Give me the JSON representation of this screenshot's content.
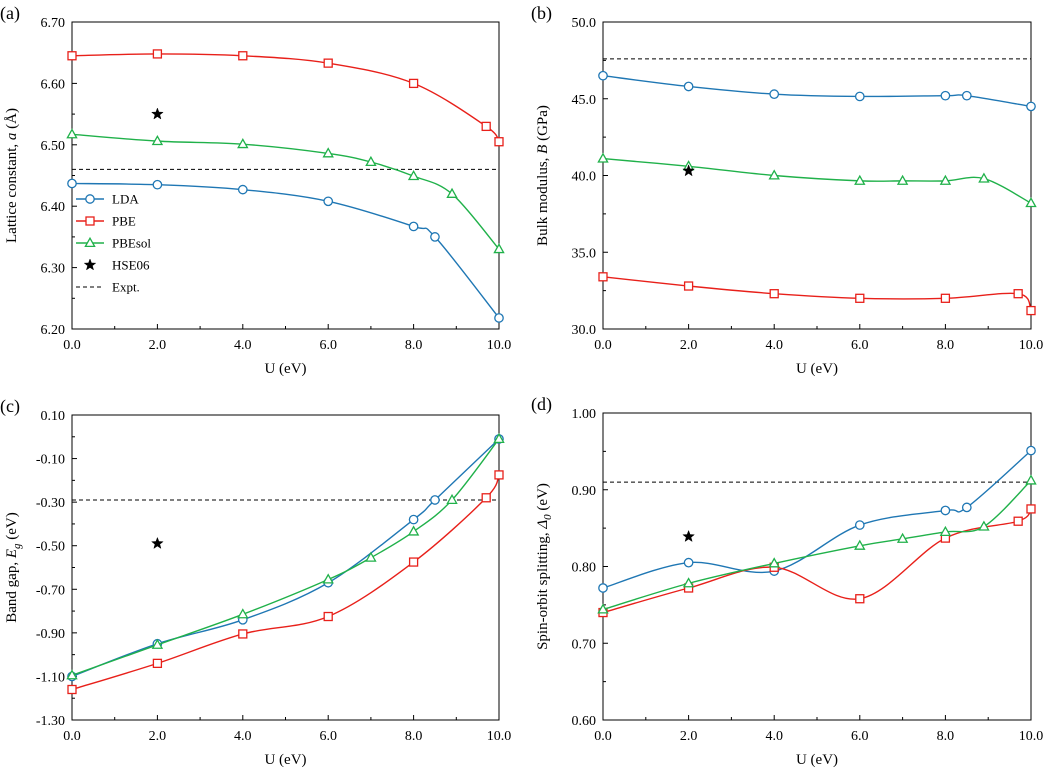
{
  "colors": {
    "LDA": "#1f77b4",
    "PBE": "#e8201a",
    "PBEsol": "#20b14a",
    "HSE06": "#000000",
    "Expt": "#000000"
  },
  "legend": [
    {
      "name": "LDA",
      "marker": "circle"
    },
    {
      "name": "PBE",
      "marker": "square"
    },
    {
      "name": "PBEsol",
      "marker": "triangle"
    },
    {
      "name": "HSE06",
      "marker": "star"
    },
    {
      "name": "Expt.",
      "marker": "dashed-line"
    }
  ],
  "chart_data": [
    {
      "type": "line",
      "panel_label": "(a)",
      "xlabel": "U (eV)",
      "ylabel": "Lattice constant, a (Å)",
      "xlim": [
        0,
        10
      ],
      "ylim": [
        6.2,
        6.7
      ],
      "xticks": [
        "0.0",
        "2.0",
        "4.0",
        "6.0",
        "8.0",
        "10.0"
      ],
      "yticks": [
        "6.20",
        "6.30",
        "6.40",
        "6.50",
        "6.60",
        "6.70"
      ],
      "legend_position": "bottom-left",
      "series": [
        {
          "name": "LDA",
          "marker": "circle",
          "x": [
            0,
            2,
            4,
            6,
            8,
            8.5,
            10
          ],
          "y": [
            6.437,
            6.435,
            6.427,
            6.408,
            6.367,
            6.35,
            6.218
          ]
        },
        {
          "name": "PBE",
          "marker": "square",
          "x": [
            0,
            2,
            4,
            6,
            8,
            9.7,
            10
          ],
          "y": [
            6.645,
            6.648,
            6.645,
            6.633,
            6.6,
            6.53,
            6.505
          ]
        },
        {
          "name": "PBEsol",
          "marker": "triangle",
          "x": [
            0,
            2,
            4,
            6,
            7,
            8,
            8.9,
            10
          ],
          "y": [
            6.517,
            6.506,
            6.501,
            6.486,
            6.472,
            6.449,
            6.42,
            6.33
          ]
        }
      ],
      "hse06": {
        "x": 2,
        "y": 6.55
      },
      "expt": 6.46
    },
    {
      "type": "line",
      "panel_label": "(b)",
      "xlabel": "U (eV)",
      "ylabel": "Bulk modulus, B (GPa)",
      "xlim": [
        0,
        10
      ],
      "ylim": [
        30,
        50
      ],
      "xticks": [
        "0.0",
        "2.0",
        "4.0",
        "6.0",
        "8.0",
        "10.0"
      ],
      "yticks": [
        "30.0",
        "35.0",
        "40.0",
        "45.0",
        "50.0"
      ],
      "series": [
        {
          "name": "LDA",
          "marker": "circle",
          "x": [
            0,
            2,
            4,
            6,
            8,
            8.5,
            10
          ],
          "y": [
            46.5,
            45.8,
            45.3,
            45.15,
            45.2,
            45.2,
            44.5
          ]
        },
        {
          "name": "PBE",
          "marker": "square",
          "x": [
            0,
            2,
            4,
            6,
            8,
            9.7,
            10
          ],
          "y": [
            33.4,
            32.8,
            32.3,
            32.0,
            32.0,
            32.3,
            31.2
          ]
        },
        {
          "name": "PBEsol",
          "marker": "triangle",
          "x": [
            0,
            2,
            4,
            6,
            7,
            8,
            8.9,
            10
          ],
          "y": [
            41.1,
            40.6,
            40.0,
            39.65,
            39.65,
            39.65,
            39.8,
            38.2
          ]
        }
      ],
      "hse06": {
        "x": 2,
        "y": 40.3
      },
      "expt": 47.6
    },
    {
      "type": "line",
      "panel_label": "(c)",
      "xlabel": "U (eV)",
      "ylabel": "Band gap, Eg (eV)",
      "xlim": [
        0,
        10
      ],
      "ylim": [
        -1.3,
        0.1
      ],
      "xticks": [
        "0.0",
        "2.0",
        "4.0",
        "6.0",
        "8.0",
        "10.0"
      ],
      "yticks": [
        "-1.30",
        "-1.10",
        "-0.90",
        "-0.70",
        "-0.50",
        "-0.30",
        "-0.10",
        "0.10"
      ],
      "series": [
        {
          "name": "LDA",
          "marker": "circle",
          "x": [
            0,
            2,
            4,
            6,
            8,
            8.5,
            10
          ],
          "y": [
            -1.1,
            -0.95,
            -0.84,
            -0.67,
            -0.38,
            -0.29,
            -0.01
          ]
        },
        {
          "name": "PBE",
          "marker": "square",
          "x": [
            0,
            2,
            4,
            6,
            8,
            9.7,
            10
          ],
          "y": [
            -1.16,
            -1.04,
            -0.905,
            -0.825,
            -0.575,
            -0.28,
            -0.175
          ]
        },
        {
          "name": "PBEsol",
          "marker": "triangle",
          "x": [
            0,
            2,
            4,
            6,
            7,
            8,
            8.9,
            10
          ],
          "y": [
            -1.095,
            -0.955,
            -0.815,
            -0.655,
            -0.555,
            -0.435,
            -0.29,
            -0.01
          ]
        }
      ],
      "hse06": {
        "x": 2,
        "y": -0.49
      },
      "expt": -0.29
    },
    {
      "type": "line",
      "panel_label": "(d)",
      "xlabel": "U (eV)",
      "ylabel": "Spin-orbit splitting, Δ0 (eV)",
      "xlim": [
        0,
        10
      ],
      "ylim": [
        0.6,
        1.0
      ],
      "xticks": [
        "0.0",
        "2.0",
        "4.0",
        "6.0",
        "8.0",
        "10.0"
      ],
      "yticks": [
        "0.60",
        "0.70",
        "0.80",
        "0.90",
        "1.00"
      ],
      "series": [
        {
          "name": "LDA",
          "marker": "circle",
          "x": [
            0,
            2,
            4,
            6,
            8,
            8.5,
            10
          ],
          "y": [
            0.772,
            0.805,
            0.794,
            0.854,
            0.873,
            0.877,
            0.951
          ]
        },
        {
          "name": "PBE",
          "marker": "square",
          "x": [
            0,
            2,
            4,
            6,
            8,
            9.7,
            10
          ],
          "y": [
            0.74,
            0.772,
            0.799,
            0.758,
            0.837,
            0.859,
            0.875
          ]
        },
        {
          "name": "PBEsol",
          "marker": "triangle",
          "x": [
            0,
            2,
            4,
            6,
            7,
            8,
            8.9,
            10
          ],
          "y": [
            0.744,
            0.778,
            0.804,
            0.827,
            0.836,
            0.845,
            0.852,
            0.912
          ]
        }
      ],
      "hse06": {
        "x": 2,
        "y": 0.839
      },
      "expt": 0.91
    }
  ]
}
